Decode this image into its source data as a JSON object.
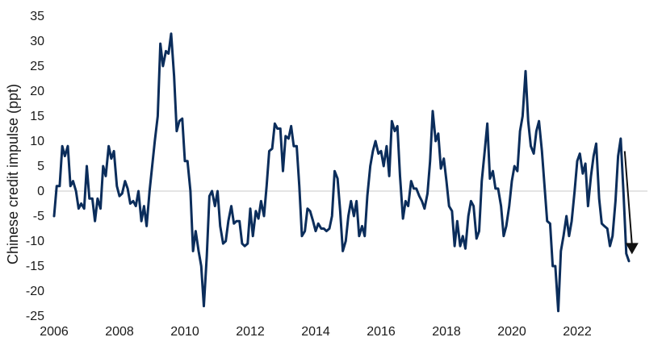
{
  "chart_data": {
    "type": "line",
    "title": "",
    "xlabel": "",
    "ylabel": "Chinese credit impulse (ppt)",
    "xlim": [
      2006,
      2023.9
    ],
    "ylim": [
      -25,
      35
    ],
    "x_ticks": [
      "2006",
      "2008",
      "2010",
      "2012",
      "2014",
      "2016",
      "2018",
      "2020",
      "2022"
    ],
    "y_ticks": [
      "35",
      "30",
      "25",
      "20",
      "15",
      "10",
      "5",
      "0",
      "-5",
      "-10",
      "-15",
      "-20",
      "-25"
    ],
    "zero_line": true,
    "colors": {
      "series": "#0b2d5b",
      "zero_line": "#c8c8c8",
      "arrow": "#111111"
    },
    "annotation": {
      "type": "down-arrow",
      "x": 2023.6,
      "y_from": 8,
      "y_to": -12
    },
    "series": [
      {
        "x": [
          2006.0,
          2006.08,
          2006.17,
          2006.25,
          2006.33,
          2006.42,
          2006.5,
          2006.58,
          2006.67,
          2006.75,
          2006.83,
          2006.92,
          2007.0,
          2007.08,
          2007.17,
          2007.25,
          2007.33,
          2007.42,
          2007.5,
          2007.58,
          2007.67,
          2007.75,
          2007.83,
          2007.92,
          2008.0,
          2008.08,
          2008.17,
          2008.25,
          2008.33,
          2008.42,
          2008.5,
          2008.58,
          2008.67,
          2008.75,
          2008.83,
          2008.92,
          2009.0,
          2009.08,
          2009.17,
          2009.25,
          2009.33,
          2009.42,
          2009.5,
          2009.58,
          2009.67,
          2009.75,
          2009.83,
          2009.92,
          2010.0,
          2010.08,
          2010.17,
          2010.25,
          2010.33,
          2010.42,
          2010.5,
          2010.58,
          2010.67,
          2010.75,
          2010.83,
          2010.92,
          2011.0,
          2011.08,
          2011.17,
          2011.25,
          2011.33,
          2011.42,
          2011.5,
          2011.58,
          2011.67,
          2011.75,
          2011.83,
          2011.92,
          2012.0,
          2012.08,
          2012.17,
          2012.25,
          2012.33,
          2012.42,
          2012.5,
          2012.58,
          2012.67,
          2012.75,
          2012.83,
          2012.92,
          2013.0,
          2013.08,
          2013.17,
          2013.25,
          2013.33,
          2013.42,
          2013.5,
          2013.58,
          2013.67,
          2013.75,
          2013.83,
          2013.92,
          2014.0,
          2014.08,
          2014.17,
          2014.25,
          2014.33,
          2014.42,
          2014.5,
          2014.58,
          2014.67,
          2014.75,
          2014.83,
          2014.92,
          2015.0,
          2015.08,
          2015.17,
          2015.25,
          2015.33,
          2015.42,
          2015.5,
          2015.58,
          2015.67,
          2015.75,
          2015.83,
          2015.92,
          2016.0,
          2016.08,
          2016.17,
          2016.25,
          2016.33,
          2016.42,
          2016.5,
          2016.58,
          2016.67,
          2016.75,
          2016.83,
          2016.92,
          2017.0,
          2017.08,
          2017.17,
          2017.25,
          2017.33,
          2017.42,
          2017.5,
          2017.58,
          2017.67,
          2017.75,
          2017.83,
          2017.92,
          2018.0,
          2018.08,
          2018.17,
          2018.25,
          2018.33,
          2018.42,
          2018.5,
          2018.58,
          2018.67,
          2018.75,
          2018.83,
          2018.92,
          2019.0,
          2019.08,
          2019.17,
          2019.25,
          2019.33,
          2019.42,
          2019.5,
          2019.58,
          2019.67,
          2019.75,
          2019.83,
          2019.92,
          2020.0,
          2020.08,
          2020.17,
          2020.25,
          2020.33,
          2020.42,
          2020.5,
          2020.58,
          2020.67,
          2020.75,
          2020.83,
          2020.92,
          2021.0,
          2021.08,
          2021.17,
          2021.25,
          2021.33,
          2021.42,
          2021.5,
          2021.58,
          2021.67,
          2021.75,
          2021.83,
          2021.92,
          2022.0,
          2022.08,
          2022.17,
          2022.25,
          2022.33,
          2022.42,
          2022.5,
          2022.58,
          2022.67,
          2022.75,
          2022.83,
          2022.92,
          2023.0,
          2023.08,
          2023.17,
          2023.25,
          2023.33,
          2023.42,
          2023.5,
          2023.58
        ],
        "y": [
          -5,
          1,
          1,
          9,
          7,
          9,
          1,
          2,
          0,
          -3.5,
          -2.5,
          -3.5,
          5,
          -1.5,
          -1.5,
          -6,
          -1.5,
          -3.5,
          5,
          3,
          9,
          6.5,
          8,
          1,
          -1,
          -0.5,
          2,
          0.5,
          -2.5,
          -2,
          -3,
          0,
          -6,
          -3,
          -7,
          0,
          5,
          10,
          15,
          29.5,
          25,
          28,
          27.5,
          31.5,
          23,
          12,
          14,
          14.5,
          6,
          6,
          0,
          -12,
          -8,
          -12,
          -15,
          -23,
          -13,
          -1,
          0,
          -3,
          0,
          -7,
          -10.5,
          -10,
          -6,
          -3,
          -6.5,
          -6,
          -6,
          -10.5,
          -11,
          -10.5,
          -3.5,
          -9,
          -4,
          -5.5,
          -2,
          -5,
          1,
          8,
          8.5,
          13.5,
          12.5,
          12.5,
          4,
          11,
          10.5,
          13,
          9,
          9,
          1,
          -9,
          -8,
          -3.5,
          -4,
          -6,
          -8,
          -6.5,
          -7.5,
          -7.5,
          -8,
          -7.5,
          -5,
          4,
          2.5,
          -4,
          -12,
          -10,
          -5,
          -2,
          -5,
          -2,
          -9,
          -7,
          -9,
          -1,
          5,
          8,
          10,
          7.5,
          8,
          5,
          9,
          3,
          14,
          12,
          13,
          3,
          -5.5,
          -2,
          -3,
          2,
          0.5,
          0.5,
          -1,
          -2,
          -3.5,
          -0.5,
          6,
          16,
          10,
          11.5,
          4.5,
          6.5,
          2,
          -3,
          -4,
          -11,
          -6,
          -11,
          -9,
          -11.5,
          -5,
          -2,
          -3,
          -9.5,
          -8,
          2,
          8,
          13.5,
          2.5,
          4,
          0.5,
          0.5,
          -3,
          -9,
          -7,
          -3,
          2,
          5,
          4,
          12,
          15,
          24,
          14,
          9,
          7.5,
          12,
          14,
          8,
          1,
          -6,
          -6.5,
          -15,
          -15,
          -24,
          -12,
          -9,
          -5,
          -9,
          -6,
          0,
          6,
          7.5,
          3.5,
          5.5,
          -3,
          3,
          7,
          9.5,
          -1.5,
          -6.5,
          -7,
          -7.5,
          -11,
          -9,
          -2,
          7,
          10.5,
          -1,
          -12.5,
          -14
        ]
      }
    ]
  }
}
